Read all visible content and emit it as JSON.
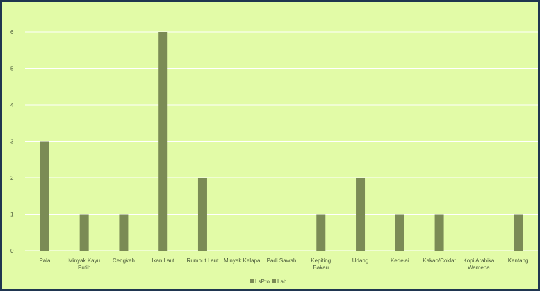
{
  "chart_data": {
    "type": "bar",
    "title": "",
    "xlabel": "",
    "ylabel": "",
    "ylim": [
      0,
      6
    ],
    "yticks": [
      "0",
      "1",
      "2",
      "3",
      "4",
      "5",
      "6"
    ],
    "grid": true,
    "legend_position": "bottom",
    "categories": [
      "Pala",
      "Minyak Kayu Putih",
      "Cengkeh",
      "Ikan Laut",
      "Rumput Laut",
      "Minyak Kelapa",
      "Padi Sawah",
      "Kepiting Bakau",
      "Udang",
      "Kedelai",
      "Kakao/Coklat",
      "Kopi Arabika Wamena",
      "Kentang"
    ],
    "series": [
      {
        "name": "LsPro",
        "color": "#7b8b55",
        "values": [
          3,
          1,
          1,
          6,
          2,
          0,
          0,
          1,
          2,
          1,
          1,
          0,
          1
        ]
      },
      {
        "name": "Lab",
        "color": "#7b8b55",
        "values": [
          0,
          0,
          0,
          0,
          0,
          0,
          0,
          0,
          0,
          0,
          0,
          0,
          0
        ]
      }
    ]
  },
  "colors": {
    "background": "#e2fba7",
    "border": "#1f3550",
    "gridline": "#ffffff",
    "text": "#4a5a3a"
  }
}
